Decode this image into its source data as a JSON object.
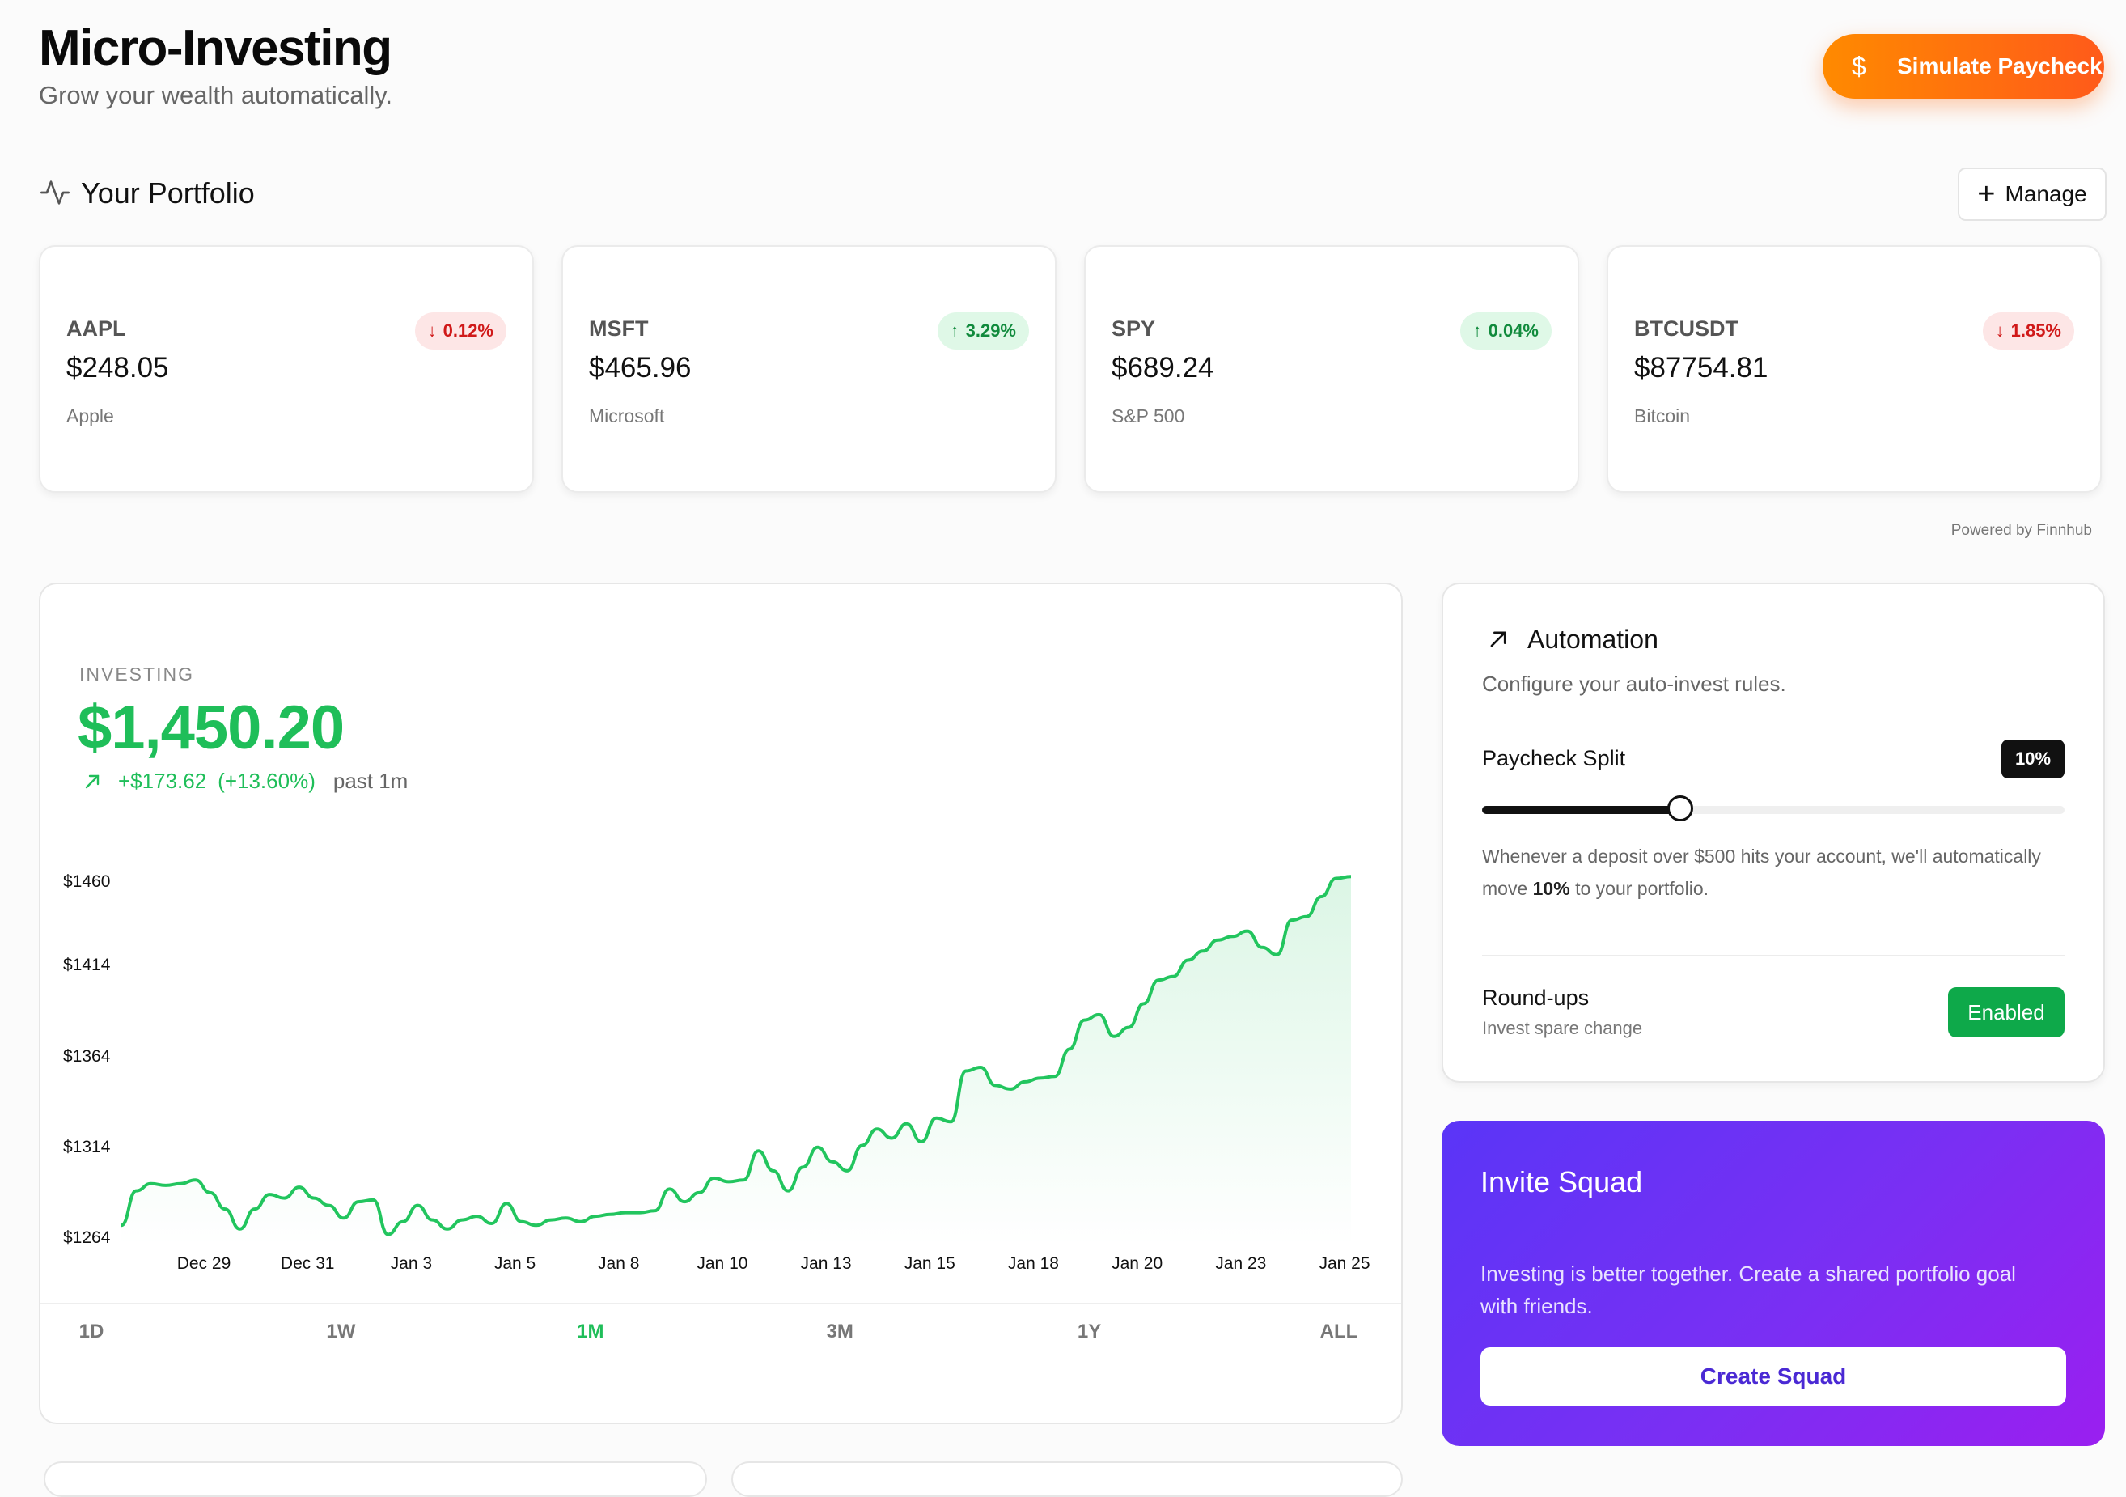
{
  "header": {
    "title": "Micro-Investing",
    "subtitle": "Grow your wealth automatically.",
    "simulate_button": "Simulate Paycheck",
    "simulate_icon": "$"
  },
  "portfolio": {
    "title": "Your Portfolio",
    "manage_label": "Manage",
    "tickers": [
      {
        "symbol": "AAPL",
        "price": "$248.05",
        "name": "Apple",
        "change": "0.12%",
        "direction": "down"
      },
      {
        "symbol": "MSFT",
        "price": "$465.96",
        "name": "Microsoft",
        "change": "3.29%",
        "direction": "up"
      },
      {
        "symbol": "SPY",
        "price": "$689.24",
        "name": "S&P 500",
        "change": "0.04%",
        "direction": "up"
      },
      {
        "symbol": "BTCUSDT",
        "price": "$87754.81",
        "name": "Bitcoin",
        "change": "1.85%",
        "direction": "down"
      }
    ],
    "powered_by": "Powered by Finnhub"
  },
  "investing": {
    "label": "INVESTING",
    "value": "$1,450.20",
    "change_amount": "+$173.62",
    "change_pct": "(+13.60%)",
    "period": "past 1m",
    "ranges": [
      "1D",
      "1W",
      "1M",
      "3M",
      "1Y",
      "ALL"
    ],
    "active_range": "1M"
  },
  "chart_data": {
    "type": "area",
    "ylabel": "",
    "xlabel": "",
    "y_ticks": [
      "$1460",
      "$1414",
      "$1364",
      "$1314",
      "$1264"
    ],
    "y_tick_values": [
      1460,
      1414,
      1364,
      1314,
      1264
    ],
    "x_ticks": [
      "Dec 29",
      "Dec 31",
      "Jan 3",
      "Jan 5",
      "Jan 8",
      "Jan 10",
      "Jan 13",
      "Jan 15",
      "Jan 18",
      "Jan 20",
      "Jan 23",
      "Jan 25"
    ],
    "color": "#22c55e",
    "series": [
      {
        "values": [
          1271,
          1290,
          1294,
          1293,
          1294,
          1296,
          1289,
          1280,
          1269,
          1280,
          1288,
          1286,
          1292,
          1286,
          1282,
          1275,
          1284,
          1285,
          1266,
          1273,
          1282,
          1274,
          1269,
          1274,
          1276,
          1272,
          1283,
          1273,
          1271,
          1274,
          1275,
          1273,
          1276,
          1277,
          1278,
          1278,
          1279,
          1291,
          1284,
          1289,
          1297,
          1295,
          1296,
          1312,
          1301,
          1290,
          1303,
          1314,
          1306,
          1301,
          1315,
          1324,
          1319,
          1327,
          1317,
          1330,
          1328,
          1356,
          1358,
          1348,
          1346,
          1350,
          1352,
          1353,
          1368,
          1384,
          1387,
          1375,
          1380,
          1393,
          1406,
          1408,
          1417,
          1422,
          1428,
          1430,
          1433,
          1424,
          1420,
          1439,
          1441,
          1452,
          1462,
          1463
        ]
      }
    ]
  },
  "automation": {
    "title": "Automation",
    "description": "Configure your auto-invest rules.",
    "split_label": "Paycheck Split",
    "split_value": "10%",
    "split_fraction": 0.34,
    "help_prefix": "Whenever a deposit over $500 hits your account, we'll automatically move ",
    "help_bold": "10%",
    "help_suffix": " to your portfolio.",
    "roundups_title": "Round-ups",
    "roundups_sub": "Invest spare change",
    "roundups_status": "Enabled"
  },
  "squad": {
    "title": "Invite Squad",
    "text": "Investing is better together. Create a shared portfolio goal with friends.",
    "button": "Create Squad"
  }
}
